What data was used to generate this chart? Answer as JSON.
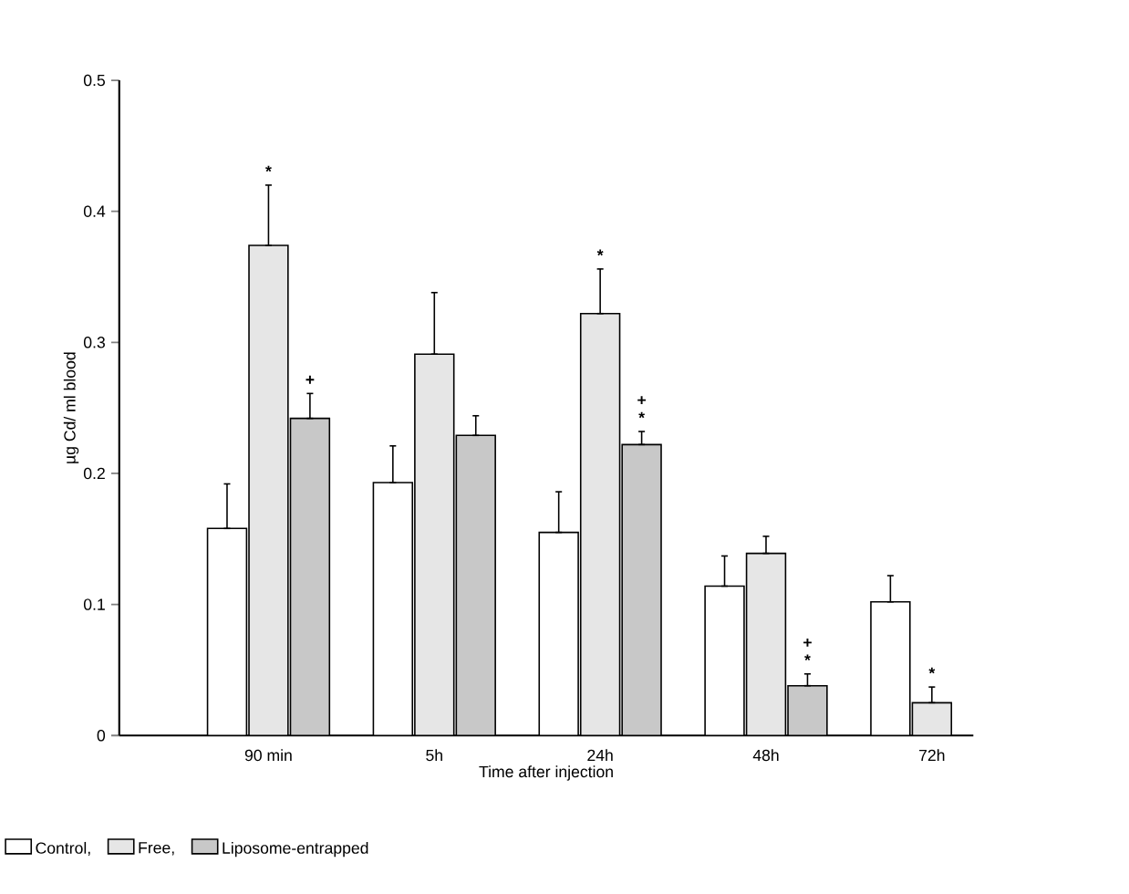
{
  "chart_data": {
    "type": "bar",
    "xlabel": "Time after injection",
    "ylabel": "µg Cd/ ml blood",
    "categories": [
      "90 min",
      "5h",
      "24h",
      "48h",
      "72h"
    ],
    "series": [
      {
        "name": "Control,",
        "color": "#ffffff",
        "values": [
          0.158,
          0.193,
          0.155,
          0.114,
          0.102
        ],
        "errors": [
          [
            0.158,
            0.192
          ],
          [
            0.193,
            0.221
          ],
          [
            0.155,
            0.186
          ],
          [
            0.114,
            0.137
          ],
          [
            0.102,
            0.122
          ]
        ]
      },
      {
        "name": "Free,",
        "color": "#e6e6e6",
        "values": [
          0.374,
          0.291,
          0.322,
          0.139,
          0.025
        ],
        "errors": [
          [
            0.374,
            0.42
          ],
          [
            0.291,
            0.338
          ],
          [
            0.322,
            0.356
          ],
          [
            0.139,
            0.152
          ],
          [
            0.025,
            0.037
          ]
        ]
      },
      {
        "name": "Liposome-entrapped",
        "color": "#c8c8c8",
        "values": [
          0.242,
          0.229,
          0.222,
          0.038,
          null
        ],
        "errors": [
          [
            0.242,
            0.261
          ],
          [
            0.229,
            0.244
          ],
          [
            0.222,
            0.232
          ],
          [
            0.038,
            0.047
          ],
          null
        ]
      }
    ],
    "ylim": [
      0,
      0.5
    ],
    "yticks": [
      0,
      0.1,
      0.2,
      0.3,
      0.4,
      0.5
    ],
    "annotations": [
      "*",
      "+",
      "*",
      "+",
      "*",
      "+",
      "*",
      "*"
    ],
    "legend": "bottom left",
    "grid": false
  }
}
